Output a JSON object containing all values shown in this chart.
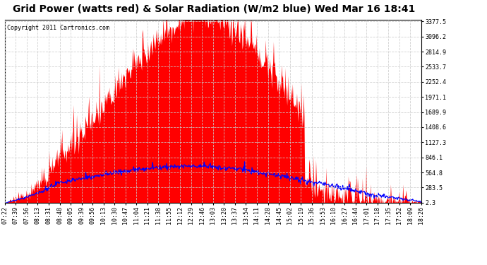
{
  "title": "Grid Power (watts red) & Solar Radiation (W/m2 blue) Wed Mar 16 18:41",
  "copyright_text": "Copyright 2011 Cartronics.com",
  "y_ticks": [
    2.3,
    283.5,
    564.8,
    846.1,
    1127.3,
    1408.6,
    1689.9,
    1971.1,
    2252.4,
    2533.7,
    2814.9,
    3096.2,
    3377.5
  ],
  "x_labels": [
    "07:22",
    "07:39",
    "07:56",
    "08:13",
    "08:31",
    "08:48",
    "09:05",
    "09:39",
    "09:56",
    "10:13",
    "10:30",
    "10:47",
    "11:04",
    "11:21",
    "11:38",
    "11:55",
    "12:12",
    "12:29",
    "12:46",
    "13:03",
    "13:20",
    "13:37",
    "13:54",
    "14:11",
    "14:28",
    "14:45",
    "15:02",
    "15:19",
    "15:36",
    "15:53",
    "16:10",
    "16:27",
    "16:44",
    "17:01",
    "17:18",
    "17:35",
    "17:52",
    "18:09",
    "18:26"
  ],
  "grid_power_color": "#ff0000",
  "solar_radiation_color": "#0000ff",
  "background_color": "#ffffff",
  "title_fontsize": 10,
  "copyright_fontsize": 6,
  "tick_fontsize": 6,
  "ymax": 3377.5,
  "ymin": 2.3,
  "n_points": 680,
  "grid_peak": 3450,
  "grid_peak_t": 0.47,
  "grid_sigma": 0.2,
  "solar_peak": 680,
  "solar_peak_t": 0.44,
  "solar_sigma": 0.28
}
